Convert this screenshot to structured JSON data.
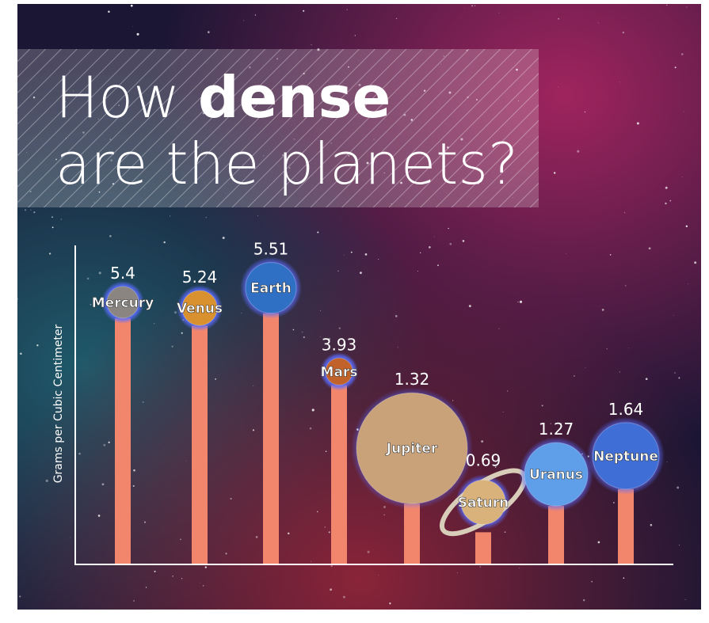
{
  "chart_data": {
    "type": "bar",
    "title_parts": [
      "How",
      "dense",
      "are the planets?"
    ],
    "ylabel": "Grams per Cubic Centimeter",
    "categories": [
      "Mercury",
      "Venus",
      "Earth",
      "Mars",
      "Jupiter",
      "Saturn",
      "Uranus",
      "Neptune"
    ],
    "values": [
      5.4,
      5.24,
      5.51,
      3.93,
      1.32,
      0.69,
      1.27,
      1.64
    ],
    "color": "#f2866c",
    "planet_colors": [
      "#8a8580",
      "#d9902e",
      "#2f6fc4",
      "#c0622a",
      "#c9a27a",
      "#d8b27a",
      "#5f9ee8",
      "#3f6fd6"
    ],
    "ylim": [
      0,
      7
    ]
  }
}
